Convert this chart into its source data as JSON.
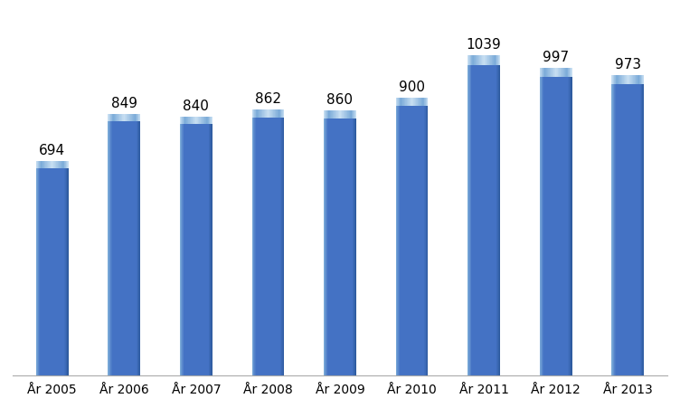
{
  "categories": [
    "År 2005",
    "År 2006",
    "År 2007",
    "År 2008",
    "År 2009",
    "År 2010",
    "År 2011",
    "År 2012",
    "År 2013"
  ],
  "values": [
    694,
    849,
    840,
    862,
    860,
    900,
    1039,
    997,
    973
  ],
  "bar_color_main": "#4472C4",
  "bar_color_light": "#7aaad8",
  "bar_color_dark": "#2d5a9e",
  "bar_color_top_highlight": "#a8c8ee",
  "background_color": "#FFFFFF",
  "label_fontsize": 11,
  "tick_fontsize": 10,
  "ylim": [
    0,
    1180
  ],
  "bar_width": 0.45,
  "spine_color": "#AAAAAA"
}
